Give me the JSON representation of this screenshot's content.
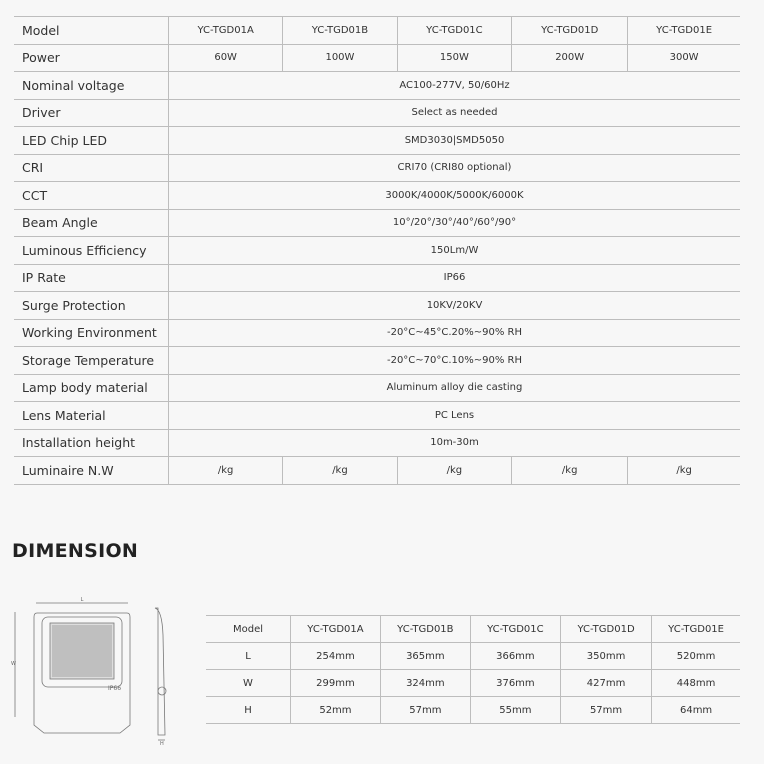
{
  "spec_table": {
    "models": [
      "YC-TGD01A",
      "YC-TGD01B",
      "YC-TGD01C",
      "YC-TGD01D",
      "YC-TGD01E"
    ],
    "rows": [
      {
        "label": "Model",
        "values": [
          "YC-TGD01A",
          "YC-TGD01B",
          "YC-TGD01C",
          "YC-TGD01D",
          "YC-TGD01E"
        ]
      },
      {
        "label": "Power",
        "values": [
          "60W",
          "100W",
          "150W",
          "200W",
          "300W"
        ]
      },
      {
        "label": "Nominal voltage",
        "value": "AC100-277V, 50/60Hz"
      },
      {
        "label": "Driver",
        "value": "Select as needed"
      },
      {
        "label": "LED Chip LED",
        "value": "SMD3030|SMD5050"
      },
      {
        "label": "CRI",
        "value": "CRI70 (CRI80 optional)"
      },
      {
        "label": "CCT",
        "value": "3000K/4000K/5000K/6000K"
      },
      {
        "label": "Beam Angle",
        "value": "10°/20°/30°/40°/60°/90°"
      },
      {
        "label": "Luminous Efficiency",
        "value": "150Lm/W"
      },
      {
        "label": "IP Rate",
        "value": "IP66"
      },
      {
        "label": "Surge Protection",
        "value": "10KV/20KV"
      },
      {
        "label": "Working Environment",
        "value": "-20°C~45°C.20%~90% RH"
      },
      {
        "label": "Storage Temperature",
        "value": "-20°C~70°C.10%~90% RH"
      },
      {
        "label": "Lamp body material",
        "value": "Aluminum alloy die casting"
      },
      {
        "label": "Lens Material",
        "value": "PC Lens"
      },
      {
        "label": "Installation height",
        "value": "10m-30m"
      },
      {
        "label": "Luminaire N.W",
        "values": [
          "/kg",
          "/kg",
          "/kg",
          "/kg",
          "/kg"
        ]
      }
    ]
  },
  "dimension": {
    "title": "DIMENSION",
    "drawing_labels": {
      "l": "L",
      "w": "W",
      "h": "H",
      "ip": "IP66"
    },
    "header": [
      "Model",
      "YC-TGD01A",
      "YC-TGD01B",
      "YC-TGD01C",
      "YC-TGD01D",
      "YC-TGD01E"
    ],
    "rows": [
      [
        "L",
        "254mm",
        "365mm",
        "366mm",
        "350mm",
        "520mm"
      ],
      [
        "W",
        "299mm",
        "324mm",
        "376mm",
        "427mm",
        "448mm"
      ],
      [
        "H",
        "52mm",
        "57mm",
        "55mm",
        "57mm",
        "64mm"
      ]
    ]
  }
}
